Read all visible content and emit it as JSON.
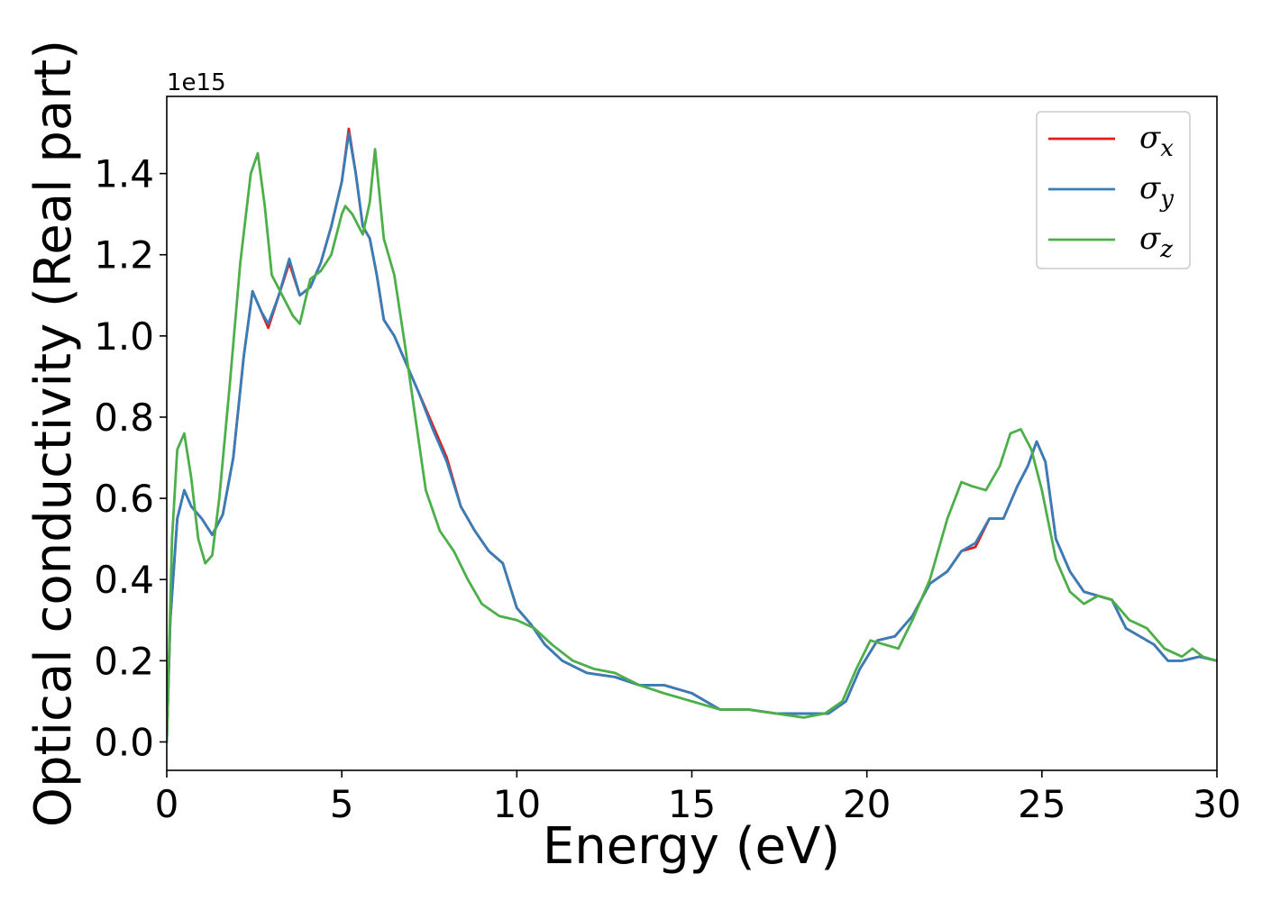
{
  "chart_data": {
    "type": "line",
    "xlabel": "Energy (eV)",
    "ylabel": "Optical conductivity (Real part)",
    "y_offset_label": "1e15",
    "xlim": [
      0,
      30
    ],
    "ylim": [
      -0.07,
      1.59
    ],
    "x_ticks": [
      0,
      5,
      10,
      15,
      20,
      25,
      30
    ],
    "x_tick_labels": [
      "0",
      "5",
      "10",
      "15",
      "20",
      "25",
      "30"
    ],
    "y_ticks": [
      0.0,
      0.2,
      0.4,
      0.6,
      0.8,
      1.0,
      1.2,
      1.4
    ],
    "y_tick_labels": [
      "0.0",
      "0.2",
      "0.4",
      "0.6",
      "0.8",
      "1.0",
      "1.2",
      "1.4"
    ],
    "grid": false,
    "legend_position": "top-right",
    "series": [
      {
        "name": "σx",
        "legend_base": "σ",
        "legend_sub": "x",
        "color": "#e41a1c",
        "x": [
          0,
          0.1,
          0.3,
          0.5,
          0.7,
          1.0,
          1.3,
          1.6,
          1.9,
          2.2,
          2.45,
          2.7,
          2.9,
          3.2,
          3.5,
          3.8,
          4.1,
          4.4,
          4.7,
          5.0,
          5.2,
          5.4,
          5.6,
          5.8,
          6.0,
          6.2,
          6.5,
          6.8,
          7.2,
          7.6,
          8.0,
          8.4,
          8.8,
          9.2,
          9.6,
          10.0,
          10.4,
          10.8,
          11.3,
          12.0,
          12.8,
          13.5,
          14.2,
          15.0,
          15.8,
          16.6,
          17.4,
          18.2,
          18.9,
          19.4,
          19.8,
          20.3,
          20.8,
          21.3,
          21.8,
          22.3,
          22.7,
          23.1,
          23.5,
          23.9,
          24.3,
          24.6,
          24.85,
          25.1,
          25.4,
          25.8,
          26.2,
          26.6,
          27.0,
          27.4,
          27.8,
          28.2,
          28.6,
          29.0,
          29.5,
          30.0
        ],
        "y": [
          0.0,
          0.3,
          0.55,
          0.62,
          0.58,
          0.55,
          0.51,
          0.56,
          0.7,
          0.95,
          1.11,
          1.06,
          1.02,
          1.1,
          1.18,
          1.1,
          1.12,
          1.18,
          1.27,
          1.38,
          1.51,
          1.4,
          1.27,
          1.24,
          1.15,
          1.04,
          1.0,
          0.94,
          0.86,
          0.78,
          0.7,
          0.58,
          0.52,
          0.47,
          0.44,
          0.33,
          0.29,
          0.24,
          0.2,
          0.17,
          0.16,
          0.14,
          0.14,
          0.12,
          0.08,
          0.08,
          0.07,
          0.07,
          0.07,
          0.1,
          0.18,
          0.25,
          0.26,
          0.31,
          0.39,
          0.42,
          0.47,
          0.48,
          0.55,
          0.55,
          0.63,
          0.68,
          0.74,
          0.69,
          0.5,
          0.42,
          0.37,
          0.36,
          0.35,
          0.28,
          0.26,
          0.24,
          0.2,
          0.2,
          0.21,
          0.2
        ]
      },
      {
        "name": "σy",
        "legend_base": "σ",
        "legend_sub": "y",
        "color": "#377eb8",
        "x": [
          0,
          0.1,
          0.3,
          0.5,
          0.7,
          1.0,
          1.3,
          1.6,
          1.9,
          2.2,
          2.45,
          2.7,
          2.9,
          3.2,
          3.5,
          3.8,
          4.1,
          4.4,
          4.7,
          5.0,
          5.2,
          5.4,
          5.6,
          5.8,
          6.0,
          6.2,
          6.5,
          6.8,
          7.2,
          7.6,
          8.0,
          8.4,
          8.8,
          9.2,
          9.6,
          10.0,
          10.4,
          10.8,
          11.3,
          12.0,
          12.8,
          13.5,
          14.2,
          15.0,
          15.8,
          16.6,
          17.4,
          18.2,
          18.9,
          19.4,
          19.8,
          20.3,
          20.8,
          21.3,
          21.8,
          22.3,
          22.7,
          23.1,
          23.5,
          23.9,
          24.3,
          24.6,
          24.85,
          25.1,
          25.4,
          25.8,
          26.2,
          26.6,
          27.0,
          27.4,
          27.8,
          28.2,
          28.6,
          29.0,
          29.5,
          30.0
        ],
        "y": [
          0.0,
          0.3,
          0.55,
          0.62,
          0.58,
          0.55,
          0.51,
          0.56,
          0.7,
          0.95,
          1.11,
          1.06,
          1.03,
          1.1,
          1.19,
          1.1,
          1.12,
          1.18,
          1.27,
          1.38,
          1.5,
          1.4,
          1.27,
          1.24,
          1.15,
          1.04,
          1.0,
          0.94,
          0.86,
          0.77,
          0.69,
          0.58,
          0.52,
          0.47,
          0.44,
          0.33,
          0.29,
          0.24,
          0.2,
          0.17,
          0.16,
          0.14,
          0.14,
          0.12,
          0.08,
          0.08,
          0.07,
          0.07,
          0.07,
          0.1,
          0.18,
          0.25,
          0.26,
          0.31,
          0.39,
          0.42,
          0.47,
          0.49,
          0.55,
          0.55,
          0.63,
          0.68,
          0.74,
          0.69,
          0.5,
          0.42,
          0.37,
          0.36,
          0.35,
          0.28,
          0.26,
          0.24,
          0.2,
          0.2,
          0.21,
          0.2
        ]
      },
      {
        "name": "σz",
        "legend_base": "σ",
        "legend_sub": "z",
        "color": "#4daf4a",
        "x": [
          0,
          0.15,
          0.3,
          0.5,
          0.7,
          0.9,
          1.1,
          1.3,
          1.5,
          1.8,
          2.1,
          2.4,
          2.6,
          2.8,
          3.0,
          3.3,
          3.6,
          3.8,
          4.1,
          4.4,
          4.7,
          5.0,
          5.1,
          5.3,
          5.6,
          5.8,
          5.95,
          6.2,
          6.5,
          6.8,
          7.1,
          7.4,
          7.8,
          8.2,
          8.6,
          9.0,
          9.5,
          10.0,
          10.5,
          11.0,
          11.6,
          12.2,
          12.8,
          13.5,
          14.2,
          15.0,
          15.8,
          16.6,
          17.4,
          18.2,
          18.8,
          19.3,
          19.7,
          20.1,
          20.5,
          20.9,
          21.3,
          21.8,
          22.3,
          22.7,
          23.0,
          23.4,
          23.8,
          24.1,
          24.4,
          24.7,
          25.0,
          25.4,
          25.8,
          26.2,
          26.6,
          27.0,
          27.5,
          28.0,
          28.5,
          29.0,
          29.3,
          29.6,
          30.0
        ],
        "y": [
          0.0,
          0.5,
          0.72,
          0.76,
          0.65,
          0.5,
          0.44,
          0.46,
          0.6,
          0.88,
          1.18,
          1.4,
          1.45,
          1.32,
          1.15,
          1.1,
          1.05,
          1.03,
          1.14,
          1.16,
          1.2,
          1.3,
          1.32,
          1.3,
          1.25,
          1.33,
          1.46,
          1.24,
          1.15,
          0.98,
          0.8,
          0.62,
          0.52,
          0.47,
          0.4,
          0.34,
          0.31,
          0.3,
          0.28,
          0.24,
          0.2,
          0.18,
          0.17,
          0.14,
          0.12,
          0.1,
          0.08,
          0.08,
          0.07,
          0.06,
          0.07,
          0.1,
          0.18,
          0.25,
          0.24,
          0.23,
          0.3,
          0.4,
          0.55,
          0.64,
          0.63,
          0.62,
          0.68,
          0.76,
          0.77,
          0.72,
          0.62,
          0.45,
          0.37,
          0.34,
          0.36,
          0.35,
          0.3,
          0.28,
          0.23,
          0.21,
          0.23,
          0.21,
          0.2
        ]
      }
    ]
  }
}
